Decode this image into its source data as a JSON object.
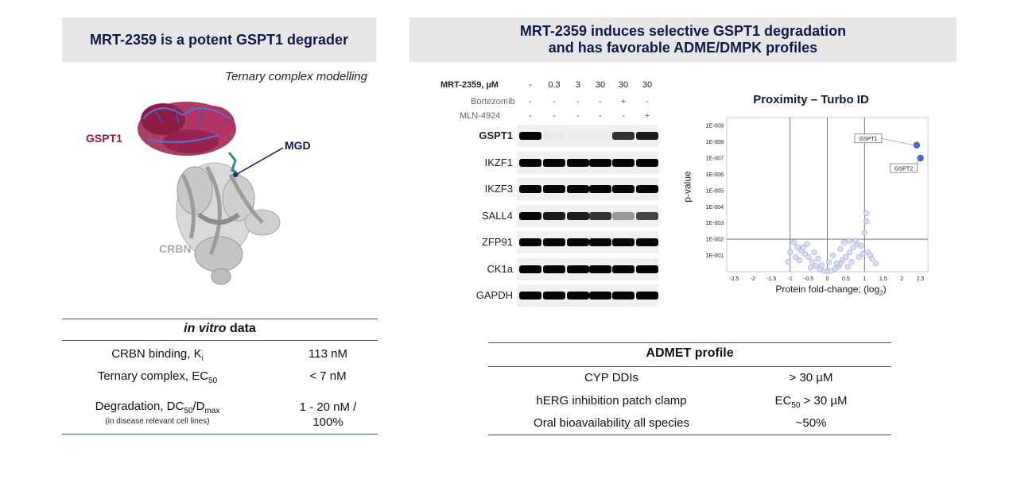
{
  "left": {
    "title": "MRT-2359 is a potent GSPT1 degrader",
    "modelling_caption": "Ternary complex modelling",
    "labels": {
      "gspt1": "GSPT1",
      "mgd": "MGD",
      "crbn": "CRBN"
    },
    "table": {
      "heading_italic": "in vitro",
      "heading_rest": " data",
      "rows": [
        {
          "label": "CRBN binding, K",
          "sub": "i",
          "value": "113 nM"
        },
        {
          "label": "Ternary complex, EC",
          "sub": "50",
          "value": "< 7 nM"
        },
        {
          "label": "Degradation, DC",
          "sub": "50",
          "label_tail": "/D",
          "sub2": "max",
          "note": "(in disease relevant cell lines)",
          "value": "1 - 20 nM /",
          "value2": "100%"
        }
      ]
    }
  },
  "right": {
    "title_line1": "MRT-2359 induces selective GSPT1 degradation",
    "title_line2": "and has favorable ADME/DMPK profiles",
    "western": {
      "treatment_rows": [
        {
          "label": "MRT-2359, µM",
          "values": [
            "-",
            "0.3",
            "3",
            "30",
            "30",
            "30"
          ]
        },
        {
          "label": "Bortezomib",
          "values": [
            "-",
            "-",
            "-",
            "-",
            "+",
            "-"
          ]
        },
        {
          "label": "MLN-4924",
          "values": [
            "-",
            "-",
            "-",
            "-",
            "-",
            "+"
          ]
        }
      ],
      "proteins": [
        "GSPT1",
        "IKZF1",
        "IKZF3",
        "SALL4",
        "ZFP91",
        "CK1a",
        "GAPDH"
      ],
      "band_intensity": [
        [
          1.0,
          0.12,
          0.08,
          0.06,
          0.9,
          0.95
        ],
        [
          1.0,
          1.0,
          1.0,
          1.0,
          1.0,
          1.0
        ],
        [
          1.0,
          1.0,
          1.0,
          1.0,
          1.0,
          1.0
        ],
        [
          1.0,
          0.95,
          0.95,
          0.9,
          0.6,
          0.85
        ],
        [
          1.0,
          1.0,
          1.0,
          1.0,
          1.0,
          1.0
        ],
        [
          1.0,
          1.0,
          1.0,
          1.0,
          1.0,
          1.0
        ],
        [
          1.0,
          1.0,
          1.0,
          1.0,
          1.0,
          1.0
        ]
      ]
    },
    "admet": {
      "heading": "ADMET profile",
      "rows": [
        {
          "label": "CYP DDIs",
          "value": "> 30 µM"
        },
        {
          "label": "hERG inhibition patch clamp",
          "value_pre": "EC",
          "value_sub": "50",
          "value_post": " > 30 µM"
        },
        {
          "label": "Oral bioavailability all species",
          "value": "~50%"
        }
      ]
    }
  },
  "chart_data": {
    "type": "scatter",
    "title": "Proximity – Turbo ID",
    "xlabel": "Protein fold-change; (log",
    "xlabel_sub": "2",
    "xlabel_tail": ")",
    "ylabel": "p-value",
    "xlim": [
      -2.7,
      2.7
    ],
    "x_ticks": [
      -2.5,
      -2,
      -1.5,
      -1,
      -0.5,
      0,
      0.5,
      1,
      1.5,
      2,
      2.5
    ],
    "x_tick_labels": [
      "-2.5",
      "-2",
      "-1.5",
      "-1",
      "-0.5",
      "0",
      "0.5",
      "1",
      "1.5",
      "2",
      "2.5"
    ],
    "y_tick_labels": [
      "1E-009",
      "1E-008",
      "1E-007",
      "1E-006",
      "1E-005",
      "1E-004",
      "1E-003",
      "1E-002",
      "1E-001"
    ],
    "y_tick_exponents": [
      -9,
      -8,
      -7,
      -6,
      -5,
      -4,
      -3,
      -2,
      -1
    ],
    "threshold_x": [
      -1,
      1
    ],
    "threshold_neglog_p": 2,
    "highlighted": [
      {
        "label": "GSPT1",
        "x": 2.4,
        "neglog_p": 7.8
      },
      {
        "label": "GSPT2",
        "x": 2.5,
        "neglog_p": 7.0
      }
    ],
    "points": [
      [
        1.05,
        3.1
      ],
      [
        1.05,
        3.6
      ],
      [
        1.0,
        2.4
      ],
      [
        1.1,
        1.2
      ],
      [
        1.3,
        0.5
      ],
      [
        1.15,
        1.0
      ],
      [
        0.9,
        1.6
      ],
      [
        0.8,
        1.7
      ],
      [
        0.7,
        1.5
      ],
      [
        0.6,
        1.2
      ],
      [
        0.5,
        0.9
      ],
      [
        0.4,
        0.7
      ],
      [
        0.35,
        0.5
      ],
      [
        0.3,
        0.3
      ],
      [
        0.2,
        0.15
      ],
      [
        0.1,
        0.05
      ],
      [
        0.0,
        0.02
      ],
      [
        -0.1,
        0.05
      ],
      [
        -0.2,
        0.15
      ],
      [
        -0.3,
        0.35
      ],
      [
        -0.4,
        0.6
      ],
      [
        -0.5,
        0.9
      ],
      [
        -0.6,
        1.1
      ],
      [
        -0.7,
        1.3
      ],
      [
        -0.8,
        1.5
      ],
      [
        -0.9,
        1.8
      ],
      [
        -0.55,
        1.7
      ],
      [
        -0.65,
        1.5
      ],
      [
        -1.0,
        1.2
      ],
      [
        -0.85,
        0.9
      ],
      [
        -0.25,
        0.8
      ],
      [
        0.15,
        1.0
      ],
      [
        0.45,
        1.8
      ],
      [
        0.65,
        0.6
      ],
      [
        0.85,
        0.9
      ],
      [
        -0.15,
        0.4
      ],
      [
        0.25,
        0.5
      ],
      [
        0.55,
        0.3
      ],
      [
        -0.45,
        0.25
      ],
      [
        0.95,
        1.1
      ],
      [
        0.75,
        1.9
      ],
      [
        -0.35,
        1.2
      ],
      [
        0.05,
        0.6
      ],
      [
        1.2,
        0.8
      ],
      [
        -0.75,
        0.7
      ],
      [
        0.35,
        1.4
      ],
      [
        -1.05,
        0.6
      ],
      [
        0.6,
        1.9
      ]
    ]
  }
}
